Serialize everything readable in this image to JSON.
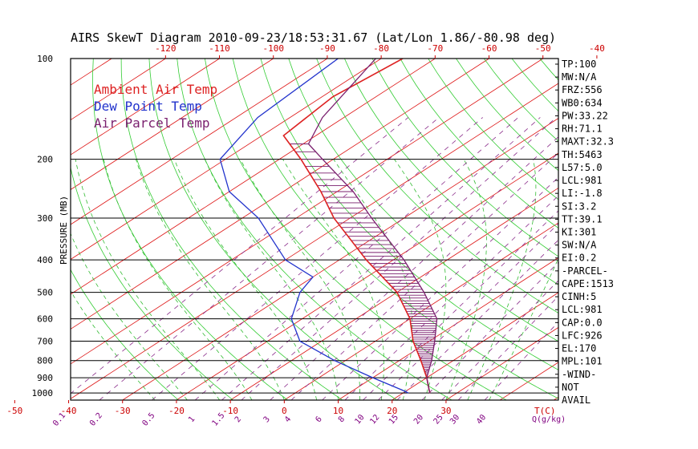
{
  "chart_data": {
    "type": "line",
    "title": "AIRS SkewT Diagram 2010-09-23/18:53:31.67 (Lat/Lon 1.86/-80.98 deg)",
    "ylabel": "PRESSURE (MB)",
    "y_scale": "log",
    "ylim": [
      1050,
      100
    ],
    "pressure_ticks": [
      100,
      200,
      300,
      400,
      500,
      600,
      700,
      800,
      900,
      1000
    ],
    "bottom_temp_ticks": [
      -50,
      -40,
      -30,
      -20,
      -10,
      0,
      10,
      20,
      30
    ],
    "bottom_temp_unit": "T(C)",
    "top_temp_ticks": [
      -120,
      -110,
      -100,
      -90,
      -80,
      -70,
      -60,
      -50,
      -40
    ],
    "mixing_ratio_ticks": [
      "0.1",
      "0.2",
      "0.5",
      "1",
      "1.5",
      "2",
      "3",
      "4",
      "6",
      "8",
      "10",
      "12",
      "15",
      "20",
      "25",
      "30",
      "40"
    ],
    "mixing_ratio_unit": "Q(g/kg)",
    "legend": [
      {
        "label": "Ambient Air Temp",
        "color": "#dd2222"
      },
      {
        "label": "Dew Point Temp",
        "color": "#2233cc"
      },
      {
        "label": "Air Parcel Temp",
        "color": "#7a1f6e"
      }
    ],
    "series": [
      {
        "name": "Ambient Air Temp",
        "color": "#dd2222",
        "points": [
          [
            100,
            -76
          ],
          [
            130,
            -78
          ],
          [
            170,
            -76
          ],
          [
            200,
            -66
          ],
          [
            250,
            -53
          ],
          [
            300,
            -43
          ],
          [
            400,
            -25
          ],
          [
            500,
            -10
          ],
          [
            600,
            0
          ],
          [
            700,
            7
          ],
          [
            800,
            14
          ],
          [
            900,
            20
          ],
          [
            980,
            24
          ],
          [
            1000,
            25
          ]
        ]
      },
      {
        "name": "Dew Point Temp",
        "color": "#2233cc",
        "points": [
          [
            100,
            -88
          ],
          [
            150,
            -86
          ],
          [
            200,
            -81
          ],
          [
            250,
            -70
          ],
          [
            300,
            -57
          ],
          [
            400,
            -40
          ],
          [
            450,
            -30
          ],
          [
            500,
            -28
          ],
          [
            600,
            -22
          ],
          [
            700,
            -14
          ],
          [
            800,
            -2
          ],
          [
            900,
            10
          ],
          [
            980,
            19
          ],
          [
            1000,
            21
          ]
        ]
      },
      {
        "name": "Air Parcel Temp",
        "color": "#7a1f6e",
        "points": [
          [
            100,
            -81
          ],
          [
            150,
            -74
          ],
          [
            180,
            -69
          ],
          [
            200,
            -62
          ],
          [
            250,
            -47
          ],
          [
            300,
            -36
          ],
          [
            400,
            -18
          ],
          [
            500,
            -5
          ],
          [
            600,
            5
          ],
          [
            700,
            11
          ],
          [
            800,
            16
          ],
          [
            900,
            20
          ],
          [
            980,
            24
          ],
          [
            1000,
            25
          ]
        ]
      }
    ],
    "dry_adiabat_thetas_K": [
      250,
      260,
      270,
      280,
      290,
      300,
      310,
      320,
      330,
      340,
      350,
      360,
      370,
      380,
      390,
      400,
      410,
      420,
      430,
      440,
      450,
      460,
      470,
      480,
      490,
      500,
      510,
      520,
      540,
      560
    ],
    "moist_adiabat_start_C": [
      -24,
      -18,
      -12,
      -6,
      0,
      6,
      10,
      14,
      18,
      22,
      26,
      30,
      34,
      38
    ],
    "grid": true
  },
  "indices": [
    "TP:100",
    "MW:N/A",
    "FRZ:556",
    "WB0:634",
    "PW:33.22",
    "RH:71.1",
    "MAXT:32.3",
    "TH:5463",
    "L57:5.0",
    "LCL:981",
    "LI:-1.8",
    "SI:3.2",
    "TT:39.1",
    "KI:301",
    "SW:N/A",
    "EI:0.2",
    "-PARCEL-",
    "CAPE:1513",
    "CINH:5",
    "LCL:981",
    "CAP:0.0",
    "LFC:926",
    "EL:170",
    "MPL:101",
    "-WIND-",
    "NOT",
    "AVAIL"
  ]
}
